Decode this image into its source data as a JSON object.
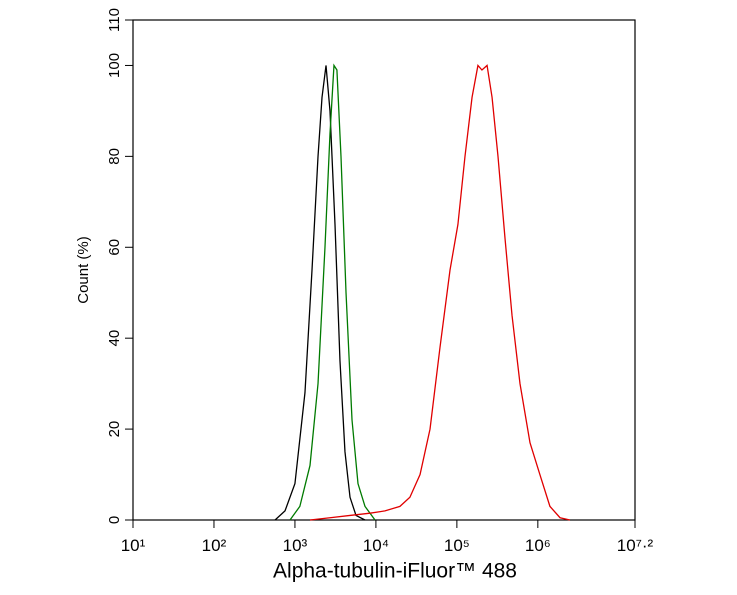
{
  "chart_data": {
    "type": "line",
    "xlabel": "Alpha-tubulin-iFluor™ 488",
    "ylabel": "Count  (%)",
    "xscale": "log",
    "xlim": [
      10,
      15848932
    ],
    "xticks": [
      {
        "value": 10,
        "label": "10¹"
      },
      {
        "value": 100,
        "label": "10²"
      },
      {
        "value": 1000,
        "label": "10³"
      },
      {
        "value": 10000,
        "label": "10⁴"
      },
      {
        "value": 100000,
        "label": "10⁵"
      },
      {
        "value": 1000000,
        "label": "10⁶"
      },
      {
        "value": 15848932,
        "label": "10⁷·²"
      }
    ],
    "ylim": [
      0,
      110
    ],
    "yticks": [
      0,
      20,
      40,
      60,
      80,
      100,
      110
    ],
    "series": [
      {
        "color": "#000000",
        "x": [
          568,
          754,
          1000,
          1330,
          1625,
          1928,
          2160,
          2420,
          2710,
          3125,
          3600,
          4150,
          4790,
          5680,
          7330
        ],
        "values": [
          0,
          2,
          8,
          28,
          55,
          80,
          93,
          100,
          90,
          65,
          35,
          15,
          5,
          1,
          0
        ]
      },
      {
        "color": "#007a00",
        "x": [
          869,
          1150,
          1535,
          1928,
          2350,
          2710,
          3035,
          3300,
          3705,
          4275,
          5070,
          6010,
          7330,
          9750
        ],
        "values": [
          0,
          3,
          12,
          30,
          60,
          85,
          100,
          99,
          80,
          50,
          22,
          8,
          3,
          0
        ]
      },
      {
        "color": "#e00000",
        "x": [
          1535,
          2710,
          4790,
          8450,
          12950,
          19800,
          26300,
          35100,
          46600,
          61900,
          82300,
          103000,
          126000,
          154000,
          182000,
          204000,
          236000,
          272000,
          322000,
          393000,
          480000,
          602000,
          800000,
          1060000,
          1410000,
          1880000,
          2490000
        ],
        "values": [
          0,
          0.5,
          1,
          1.5,
          2,
          3,
          5,
          10,
          20,
          38,
          55,
          65,
          80,
          93,
          100,
          99,
          100,
          93,
          80,
          62,
          45,
          30,
          17,
          10,
          3,
          0.5,
          0
        ]
      }
    ]
  }
}
